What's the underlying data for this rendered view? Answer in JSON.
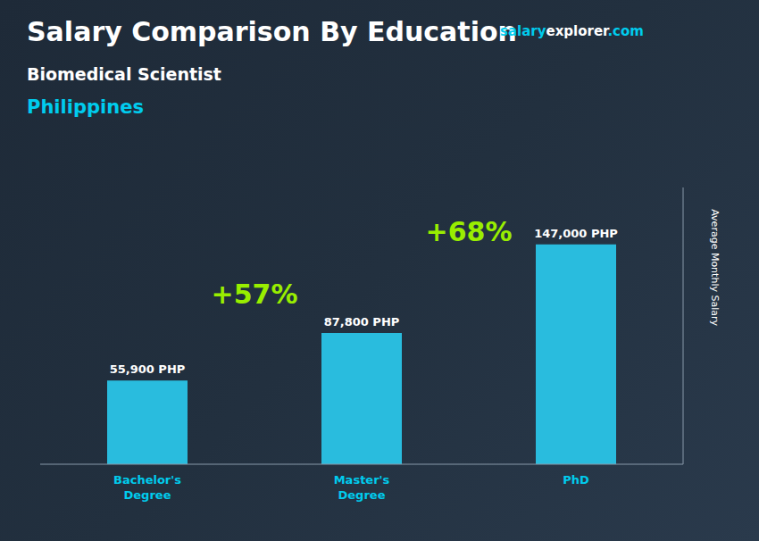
{
  "chart_data": {
    "type": "bar",
    "title": "Salary Comparison By Education",
    "subtitle": "Biomedical Scientist",
    "ylabel": "Average Monthly Salary",
    "annotations": [
      "Philippines",
      "+57%",
      "+68%",
      "salary",
      "explorer",
      ".com"
    ],
    "categories": [
      "Bachelor's\nDegree",
      "Master's\nDegree",
      "PhD"
    ],
    "values": [
      55900,
      87800,
      147000
    ],
    "value_labels": [
      "55,900 PHP",
      "87,800 PHP",
      "147,000 PHP"
    ],
    "data_labels": true,
    "color": "#29BCDE",
    "ylim": [
      0,
      185000
    ],
    "grid": false,
    "tick_labels": "x"
  }
}
